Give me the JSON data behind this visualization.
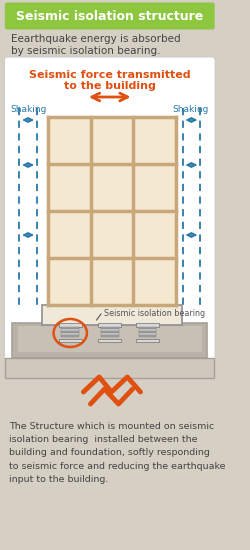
{
  "title": "Seismic isolation structure",
  "title_bg": "#8dc63f",
  "title_color": "#ffffff",
  "subtitle1": "Eearthquake energy is absorbed",
  "subtitle2": "by seismic isolation bearing.",
  "subtitle_color": "#444444",
  "bg_color": "#d6cfc4",
  "panel_bg": "#ffffff",
  "building_fill": "#f5e8d0",
  "building_stroke": "#c8a87a",
  "floor_color": "#c8a87a",
  "col_color": "#c8a87a",
  "dashed_color": "#2878a8",
  "arrow_color": "#2878a8",
  "seismic_arrow_color": "#e05010",
  "seismic_text_color": "#e05010",
  "foundation_outer_fill": "#b8b2a8",
  "foundation_outer_stroke": "#909090",
  "foundation_inner_fill": "#c8c0b4",
  "base_fill": "#d0c8bc",
  "base_stroke": "#a8a098",
  "bearing_dark": "#a0a0a0",
  "bearing_light": "#d8d8d8",
  "bearing_mid": "#c0c0c0",
  "circle_color": "#e05010",
  "zigzag_color": "#e05010",
  "label_color": "#2878a8",
  "footer_color": "#444444",
  "shaking_label": "Shaking",
  "seismic_label1": "Seismic force transmitted",
  "seismic_label2": "to the building",
  "bearing_label": "Seismic isolation bearing",
  "footer_text": "The Structure which is mounted on seismic\nisolation bearing  installed between the\nbuilding and foundation, softly responding\nto seismic force and reducing the earthquake\ninput to the building."
}
